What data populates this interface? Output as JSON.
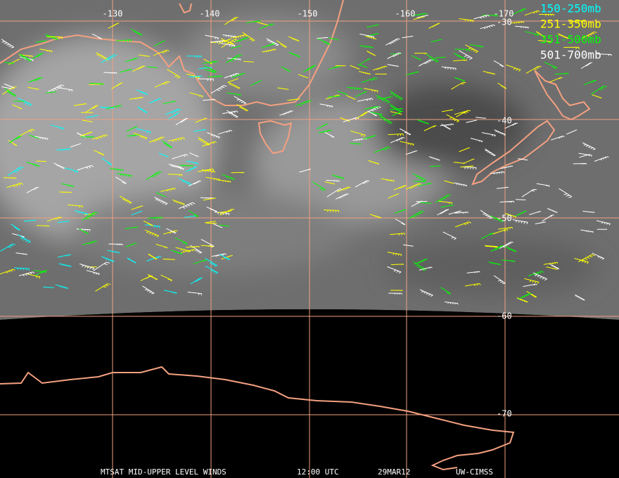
{
  "map": {
    "longitude_labels": [
      "-130",
      "-140",
      "-150",
      "-160",
      "-170"
    ],
    "latitude_labels": [
      "-30",
      "-40",
      "-50",
      "-60",
      "-70"
    ],
    "legend": [
      "150-250mb",
      "251-350mb",
      "351-500mb",
      "501-700mb"
    ],
    "footer": {
      "product": "MTSAT MID-UPPER LEVEL WINDS",
      "time": "12:00 UTC",
      "date": "29MAR12",
      "source": "UW-CIMSS"
    }
  }
}
